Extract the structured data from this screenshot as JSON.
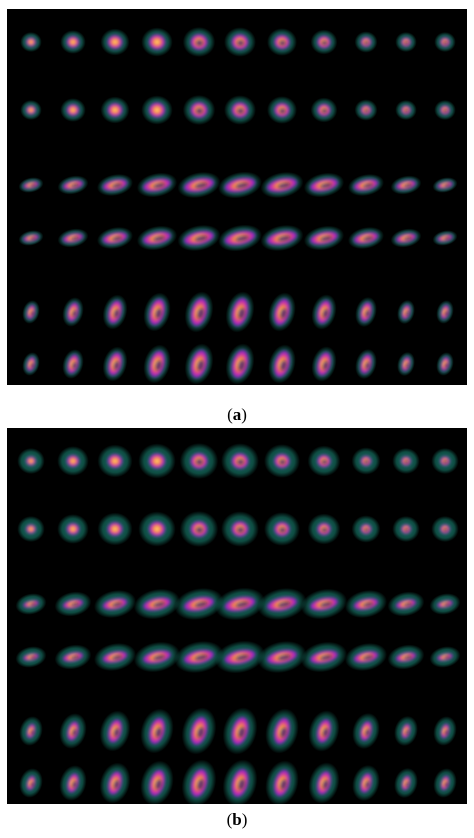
{
  "figure": {
    "panels": [
      {
        "id": "a",
        "label": "a",
        "caption_open": "(",
        "caption_close": ")",
        "rows": 6,
        "columns": 11,
        "row_views": [
          "short-axis",
          "short-axis",
          "horizontal-long-axis",
          "horizontal-long-axis",
          "vertical-long-axis",
          "vertical-long-axis"
        ]
      },
      {
        "id": "b",
        "label": "b",
        "caption_open": "(",
        "caption_close": ")",
        "rows": 6,
        "columns": 11,
        "row_views": [
          "short-axis",
          "short-axis",
          "horizontal-long-axis",
          "horizontal-long-axis",
          "vertical-long-axis",
          "vertical-long-axis"
        ]
      }
    ],
    "colors": {
      "background": "#000000",
      "halo": "#1a8a78",
      "myocardium_low": "#7b22d6",
      "myocardium_mid": "#d1309c",
      "myocardium_high": "#ff9a30",
      "hotspot": "#ffe9a0"
    }
  }
}
